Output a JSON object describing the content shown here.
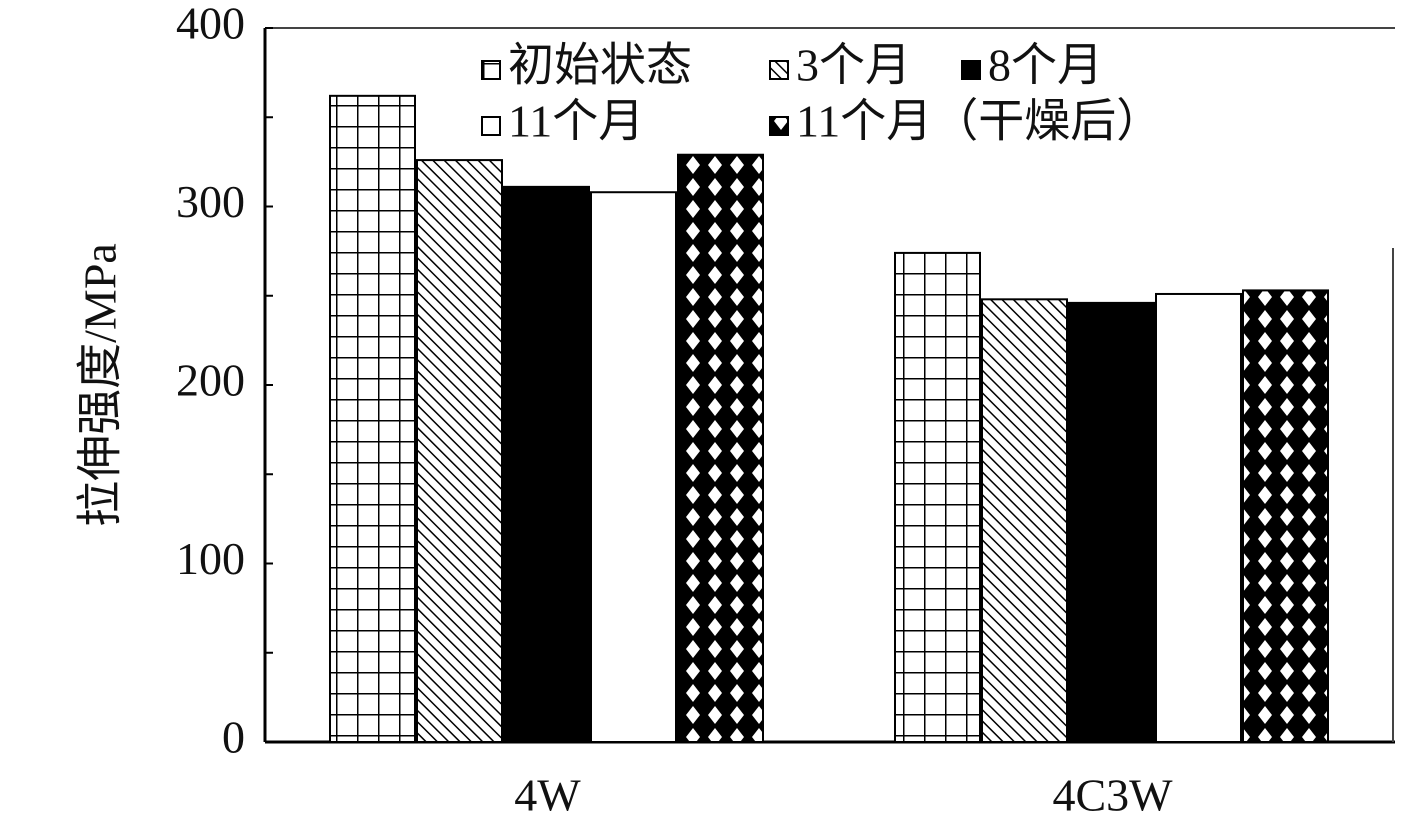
{
  "chart_data": {
    "type": "bar",
    "y_label": "拉伸强度/MPa",
    "categories": [
      "4W",
      "4C3W"
    ],
    "series": [
      {
        "name": "初始状态",
        "color": "#000000",
        "pattern": "grid",
        "values": [
          362,
          274
        ]
      },
      {
        "name": "3个月",
        "color": "#000000",
        "pattern": "hatch",
        "values": [
          326,
          248
        ]
      },
      {
        "name": "8个月",
        "color": "#000000",
        "pattern": "solid",
        "values": [
          311,
          246
        ]
      },
      {
        "name": "11个月",
        "color": "#000000",
        "pattern": "empty",
        "values": [
          308,
          251
        ]
      },
      {
        "name": "11个月（干燥后）",
        "color": "#000000",
        "pattern": "checker",
        "values": [
          329,
          253
        ]
      }
    ],
    "ylim": [
      0,
      400
    ],
    "yticks": [
      0,
      100,
      200,
      300,
      400
    ],
    "yminorticks": [
      50,
      150,
      250,
      350
    ]
  }
}
